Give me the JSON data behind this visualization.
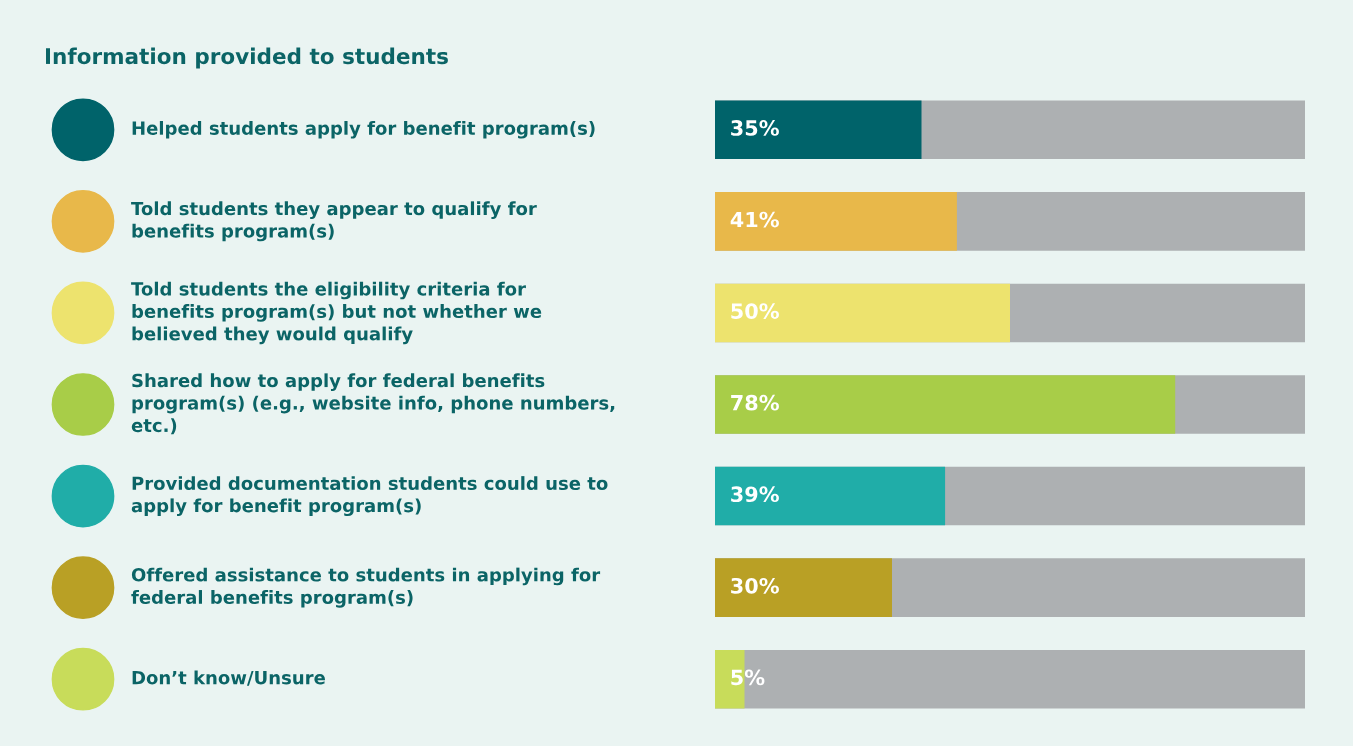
{
  "chart_data": {
    "type": "bar",
    "orientation": "horizontal",
    "title": "Information provided to students",
    "categories": [
      "Helped students apply for benefit program(s)",
      "Told students they appear to qualify for\nbenefits program(s)",
      "Told students the eligibility criteria for\nbenefits program(s) but not whether we\nbelieved they would qualify",
      "Shared how to apply for federal benefits\nprogram(s) (e.g., website info, phone numbers,\netc.)",
      "Provided documentation students could use to\napply for benefit program(s)",
      "Offered assistance to students in applying for\nfederal benefits program(s)",
      "Don’t know/Unsure"
    ],
    "values": [
      35,
      41,
      50,
      78,
      39,
      30,
      5
    ],
    "colors": [
      "#00636a",
      "#e8b84a",
      "#ede36e",
      "#a8cd48",
      "#20ada8",
      "#b9a025",
      "#c8dc5a"
    ],
    "value_labels": [
      "35%",
      "41%",
      "50%",
      "78%",
      "39%",
      "30%",
      "5%"
    ],
    "xlim": [
      0,
      100
    ],
    "legend": false
  }
}
